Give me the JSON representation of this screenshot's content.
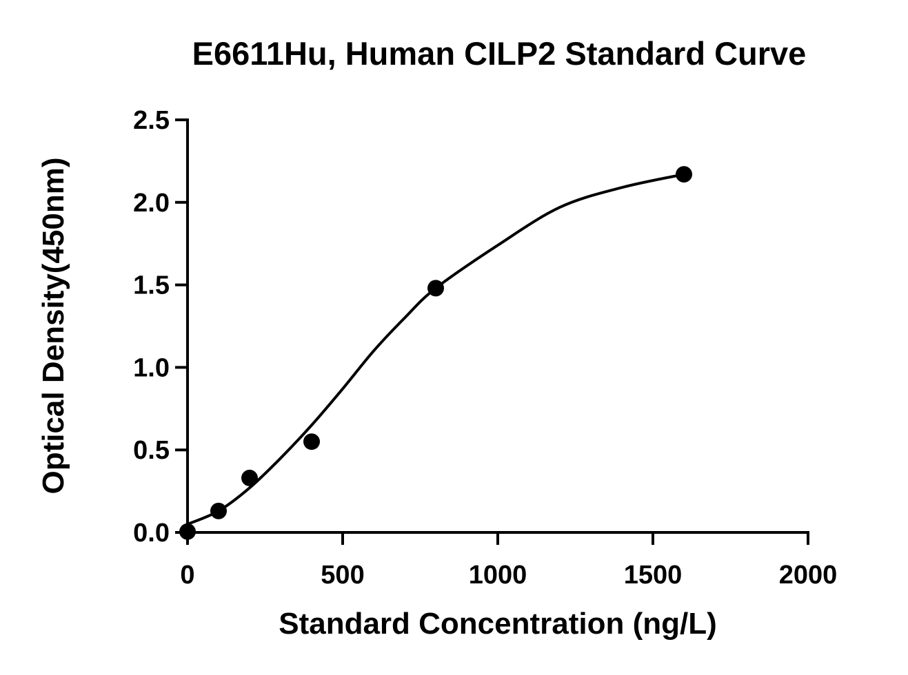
{
  "chart_data": {
    "type": "scatter",
    "title": "E6611Hu, Human CILP2 Standard Curve",
    "x_label": "Standard Concentration (ng/L)",
    "y_label": "Optical Density(450nm)",
    "series": [
      {
        "style": "points",
        "color": "#000000",
        "x": [
          0,
          100,
          200,
          400,
          800,
          1600
        ],
        "values": [
          0.005,
          0.13,
          0.33,
          0.55,
          1.48,
          2.17
        ]
      },
      {
        "style": "line",
        "color": "#000000",
        "x": [
          0,
          100,
          200,
          300,
          400,
          500,
          600,
          700,
          800,
          1000,
          1200,
          1400,
          1600
        ],
        "values": [
          0.05,
          0.13,
          0.27,
          0.45,
          0.65,
          0.87,
          1.1,
          1.3,
          1.48,
          1.74,
          1.97,
          2.09,
          2.17
        ]
      }
    ],
    "xlim": [
      0,
      2000
    ],
    "xticks": [
      0,
      500,
      1000,
      1500,
      2000
    ],
    "ylim": [
      0,
      2.5
    ],
    "yticks": [
      {
        "value": 0,
        "label": "0.0"
      },
      0.5,
      {
        "value": 1,
        "label": "1.0"
      },
      1.5,
      {
        "value": 2,
        "label": "2.0"
      },
      2.5
    ]
  }
}
